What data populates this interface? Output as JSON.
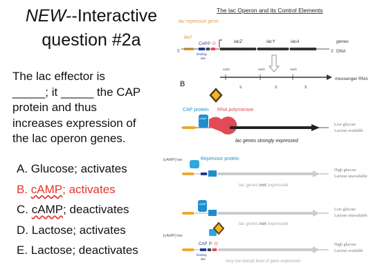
{
  "title": {
    "new": "NEW",
    "rest": "--Interactive",
    "line2": "question #2a"
  },
  "question": {
    "l1": "The lac effector is",
    "l2": "_____; it _____ the CAP",
    "l3": "protein and thus",
    "l4": "increases expression of",
    "l5": "the lac operon genes."
  },
  "answers": [
    {
      "letter": "A.",
      "text": "Glucose; activates"
    },
    {
      "letter": "B.",
      "pre": "cAMP",
      "text": "; activates"
    },
    {
      "letter": "C.",
      "pre": "cAMP",
      "text": "; deactivates"
    },
    {
      "letter": "D.",
      "text": "Lactose; activates"
    },
    {
      "letter": "E.",
      "text": "Lactose; deactivates"
    }
  ],
  "diagram": {
    "title": "The lac Operon and its Control Elements",
    "lac_repressor_gene": "lac repressor gene",
    "lacI": "lacI",
    "cap": "CAP",
    "p": "P",
    "o": "O",
    "binding_site": "binding site",
    "lacZ": "lacZ",
    "lacY": "lacY",
    "lacA": "lacA",
    "genes": "genes",
    "dna": "DNA",
    "five": "5'",
    "three": "3'",
    "aug": "AUG",
    "mrna": "messenger RNA",
    "label_b": "B",
    "cap_protein": "CAP protein",
    "rna_polymerase": "RNA polymerase",
    "camp": "cAMP",
    "strong": "lac genes strongly expressed",
    "low_glucose_1": "Low glucose",
    "lactose_avail_1": "Lactose available",
    "camp_low": "[cAMP] low",
    "repressor_protein": "Repressor protein",
    "not_expressed_pre": "lac genes",
    "not_word": "not",
    "expressed": "expressed",
    "high_glucose_2": "High glucose",
    "lactose_unavail_2": "Lactose unavailable",
    "low_glucose_3": "Low glucose",
    "lactose_unavail_3": "Lactose unavailable",
    "high_glucose_4": "High glucose",
    "lactose_avail_4": "Lactose available",
    "basal": "very low (basal) level of gene expression"
  },
  "colors": {
    "accent_red": "#e8332b",
    "dna_orange": "#f0a82a",
    "repressor_blue": "#2aa9e0",
    "camp_blue": "#1d8fcf",
    "rnap_red": "#e24a55",
    "lactose_yellow": "#f2b81a",
    "lactose_outline": "#5b3b1e"
  }
}
